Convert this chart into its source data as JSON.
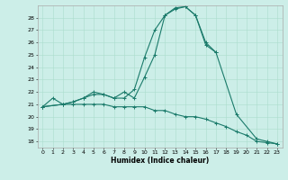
{
  "title": "",
  "xlabel": "Humidex (Indice chaleur)",
  "bg_color": "#cceee8",
  "grid_color": "#aaddcc",
  "line_color": "#1a7a6a",
  "xlim": [
    -0.5,
    23.5
  ],
  "ylim": [
    17.5,
    29.0
  ],
  "xticks": [
    0,
    1,
    2,
    3,
    4,
    5,
    6,
    7,
    8,
    9,
    10,
    11,
    12,
    13,
    14,
    15,
    16,
    17,
    18,
    19,
    20,
    21,
    22,
    23
  ],
  "yticks": [
    18,
    19,
    20,
    21,
    22,
    23,
    24,
    25,
    26,
    27,
    28
  ],
  "series": [
    {
      "x": [
        0,
        1,
        2,
        3,
        4,
        5,
        6,
        7,
        8,
        9,
        10,
        11,
        12,
        13,
        14,
        15,
        16,
        17
      ],
      "y": [
        20.8,
        21.5,
        21.0,
        21.2,
        21.5,
        22.0,
        21.8,
        21.5,
        21.5,
        22.2,
        24.8,
        27.0,
        28.2,
        28.7,
        28.9,
        28.2,
        26.0,
        25.2
      ]
    },
    {
      "x": [
        0,
        2,
        3,
        4,
        5,
        6,
        7,
        8,
        9,
        10,
        11,
        12,
        13,
        14,
        15,
        16,
        17,
        19,
        21,
        22,
        23
      ],
      "y": [
        20.8,
        21.0,
        21.2,
        21.5,
        21.8,
        21.8,
        21.5,
        22.0,
        21.5,
        23.2,
        25.0,
        28.2,
        28.8,
        28.9,
        28.2,
        25.8,
        25.2,
        20.2,
        18.2,
        18.0,
        17.8
      ]
    },
    {
      "x": [
        0,
        2,
        3,
        4,
        5,
        6,
        7,
        8,
        9,
        10,
        11,
        12,
        13,
        14,
        15,
        16,
        17,
        18,
        19,
        20,
        21,
        22,
        23
      ],
      "y": [
        20.8,
        21.0,
        21.0,
        21.0,
        21.0,
        21.0,
        20.8,
        20.8,
        20.8,
        20.8,
        20.5,
        20.5,
        20.2,
        20.0,
        20.0,
        19.8,
        19.5,
        19.2,
        18.8,
        18.5,
        18.0,
        17.9,
        17.8
      ]
    }
  ]
}
